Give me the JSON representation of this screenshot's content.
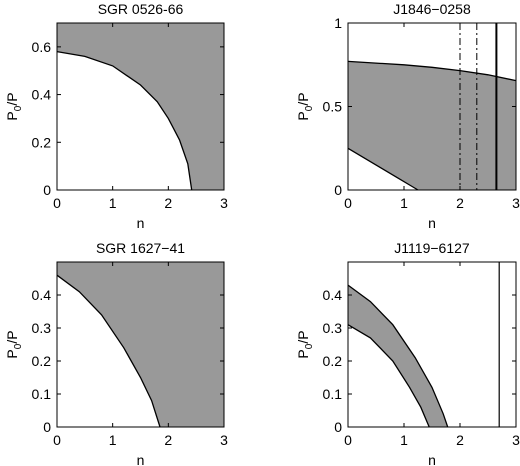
{
  "chart_data": [
    {
      "type": "area",
      "title": "SGR 0526-66",
      "xlabel": "n",
      "ylabel": {
        "base": "P",
        "sub": "0",
        "tail": "/P"
      },
      "xlim": [
        0,
        3
      ],
      "ylim": [
        0,
        0.7
      ],
      "xticks": [
        "0",
        "1",
        "2",
        "3"
      ],
      "yticks": [
        "0",
        "0.2",
        "0.4",
        "0.6"
      ],
      "ytick_values": [
        0,
        0.2,
        0.4,
        0.6
      ],
      "grid": false,
      "shaded_color": "#999999",
      "lower_boundary": {
        "n": [
          0,
          0.5,
          1.0,
          1.5,
          1.8,
          2.0,
          2.2,
          2.35,
          2.42
        ],
        "p0_over_p": [
          0.58,
          0.56,
          0.52,
          0.44,
          0.37,
          0.3,
          0.21,
          0.11,
          0
        ]
      },
      "upper_boundary": {
        "n": [
          0,
          3
        ],
        "p0_over_p": [
          0.7,
          0.7
        ]
      },
      "vertical_lines": []
    },
    {
      "type": "area",
      "title": "J1846−0258",
      "xlabel": "n",
      "ylabel": {
        "base": "P",
        "sub": "0",
        "tail": "/P"
      },
      "xlim": [
        0,
        3
      ],
      "ylim": [
        0,
        1
      ],
      "xticks": [
        "0",
        "1",
        "2",
        "3"
      ],
      "yticks": [
        "0",
        "0.5",
        "1"
      ],
      "ytick_values": [
        0,
        0.5,
        1
      ],
      "grid": false,
      "shaded_color": "#999999",
      "lower_boundary": {
        "n": [
          0,
          0.3,
          0.6,
          0.9,
          1.1,
          1.25
        ],
        "p0_over_p": [
          0.25,
          0.19,
          0.13,
          0.07,
          0.03,
          0
        ]
      },
      "upper_boundary": {
        "n": [
          0,
          0.5,
          1.0,
          1.5,
          2.0,
          2.5,
          3.0
        ],
        "p0_over_p": [
          0.77,
          0.76,
          0.75,
          0.735,
          0.715,
          0.69,
          0.655
        ]
      },
      "vertical_lines": [
        {
          "n": 2.0,
          "style": "dash-dot"
        },
        {
          "n": 2.3,
          "style": "dash-dot"
        },
        {
          "n": 2.65,
          "style": "solid-bold"
        }
      ]
    },
    {
      "type": "area",
      "title": "SGR 1627−41",
      "xlabel": "n",
      "ylabel": {
        "base": "P",
        "sub": "0",
        "tail": "/P"
      },
      "xlim": [
        0,
        3
      ],
      "ylim": [
        0,
        0.5
      ],
      "xticks": [
        "0",
        "1",
        "2",
        "3"
      ],
      "yticks": [
        "0",
        "0.1",
        "0.2",
        "0.3",
        "0.4"
      ],
      "ytick_values": [
        0,
        0.1,
        0.2,
        0.3,
        0.4
      ],
      "grid": false,
      "shaded_color": "#999999",
      "lower_boundary": {
        "n": [
          0,
          0.4,
          0.8,
          1.2,
          1.5,
          1.7,
          1.85
        ],
        "p0_over_p": [
          0.46,
          0.41,
          0.34,
          0.24,
          0.15,
          0.08,
          0
        ]
      },
      "upper_boundary": {
        "n": [
          0,
          3
        ],
        "p0_over_p": [
          0.5,
          0.5
        ]
      },
      "vertical_lines": []
    },
    {
      "type": "area",
      "title": "J1119−6127",
      "xlabel": "n",
      "ylabel": {
        "base": "P",
        "sub": "0",
        "tail": "/P"
      },
      "xlim": [
        0,
        3
      ],
      "ylim": [
        0,
        0.5
      ],
      "xticks": [
        "0",
        "1",
        "2",
        "3"
      ],
      "yticks": [
        "0",
        "0.1",
        "0.2",
        "0.3",
        "0.4"
      ],
      "ytick_values": [
        0,
        0.1,
        0.2,
        0.3,
        0.4
      ],
      "grid": false,
      "shaded_color": "#999999",
      "band_upper": {
        "n": [
          0,
          0.4,
          0.8,
          1.2,
          1.5,
          1.7,
          1.78
        ],
        "p0_over_p": [
          0.43,
          0.38,
          0.31,
          0.21,
          0.12,
          0.04,
          0
        ]
      },
      "band_lower": {
        "n": [
          0,
          0.4,
          0.8,
          1.1,
          1.3,
          1.45
        ],
        "p0_over_p": [
          0.31,
          0.27,
          0.2,
          0.12,
          0.06,
          0
        ]
      },
      "vertical_lines": [
        {
          "n": 2.7,
          "style": "solid"
        }
      ]
    }
  ]
}
